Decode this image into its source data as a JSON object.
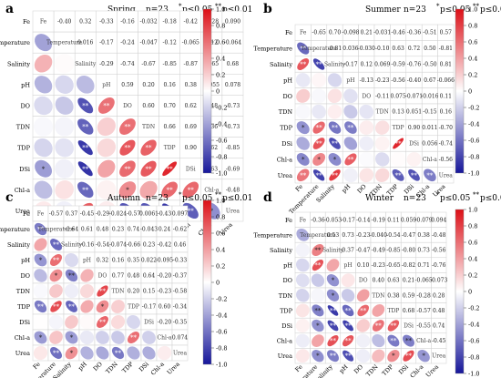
{
  "figure": {
    "panels": [
      {
        "letter": "a",
        "season": "Spring",
        "n_label": "n=23",
        "sig_star": "*",
        "sig_star_label": "p≤0.05",
        "sig_double": "**",
        "sig_double_label": "p≤0.01"
      },
      {
        "letter": "b",
        "season": "Summer",
        "n_label": "n=23",
        "sig_star": "*",
        "sig_star_label": "p≤0.05",
        "sig_double": "**",
        "sig_double_label": "p≤0.01"
      },
      {
        "letter": "c",
        "season": "Autumn",
        "n_label": "n=23",
        "sig_star": "*",
        "sig_star_label": "p≤0.05",
        "sig_double": "**",
        "sig_double_label": "p≤0.01"
      },
      {
        "letter": "d",
        "season": "Winter",
        "n_label": "n=23",
        "sig_star": "*",
        "sig_star_label": "p≤0.05",
        "sig_double": "**",
        "sig_double_label": "p≤0.01"
      }
    ],
    "colorbar_ticks": [
      "1.0",
      "0.8",
      "0.6",
      "0.4",
      "0.2",
      "0",
      "-0.2",
      "-0.4",
      "-0.6",
      "-0.8",
      "-1.0"
    ],
    "colors": {
      "positive": "#e8121a",
      "negative": "#1b1bb0",
      "neutral": "#ffffff",
      "grid": "#cfcfcf"
    }
  },
  "chart_data": [
    {
      "type": "heatmap",
      "title": "Spring",
      "variables": [
        "Fe",
        "Temperature",
        "Salinity",
        "pH",
        "DO",
        "TDN",
        "TDP",
        "DSi",
        "Chl-a",
        "Urea"
      ],
      "upper_labels": [
        [
          "",
          "-0.40",
          "0.32",
          "-0.33",
          "-0.16",
          "-0.032",
          "-0.18",
          "-0.42",
          "-0.28",
          "0.090"
        ],
        [
          "",
          "",
          "0.016",
          "-0.17",
          "-0.24",
          "-0.047",
          "-0.12",
          "-0.065",
          "0.12",
          "-0.064"
        ],
        [
          "",
          "",
          "",
          "-0.29",
          "-0.74",
          "-0.67",
          "-0.85",
          "-0.87",
          "-0.65",
          "0.68"
        ],
        [
          "",
          "",
          "",
          "",
          "0.59",
          "0.20",
          "0.16",
          "0.38",
          "0.055",
          "0.078"
        ],
        [
          "",
          "",
          "",
          "",
          "",
          "0.60",
          "0.70",
          "0.62",
          "0.48",
          "-0.73"
        ],
        [
          "",
          "",
          "",
          "",
          "",
          "",
          "0.66",
          "0.69",
          "0.36",
          "-0.73"
        ],
        [
          "",
          "",
          "",
          "",
          "",
          "",
          "",
          "0.90",
          "0.62",
          "-0.85"
        ],
        [
          "",
          "",
          "",
          "",
          "",
          "",
          "",
          "",
          "0.63",
          "-0.69"
        ],
        [
          "",
          "",
          "",
          "",
          "",
          "",
          "",
          "",
          "",
          "-0.48"
        ],
        [
          "",
          "",
          "",
          "",
          "",
          "",
          "",
          "",
          "",
          ""
        ]
      ],
      "lower_sig": [
        [
          "",
          "",
          "",
          "",
          "",
          "",
          "",
          "",
          "",
          ""
        ],
        [
          "",
          "",
          "",
          "",
          "",
          "",
          "",
          "",
          "",
          ""
        ],
        [
          "",
          "",
          "",
          "",
          "",
          "",
          "",
          "",
          "",
          ""
        ],
        [
          "",
          "",
          "",
          "",
          "",
          "",
          "",
          "",
          "",
          ""
        ],
        [
          "",
          "",
          "**",
          "**",
          "",
          "",
          "",
          "",
          "",
          ""
        ],
        [
          "",
          "",
          "**",
          "",
          "**",
          "",
          "",
          "",
          "",
          ""
        ],
        [
          "",
          "",
          "**",
          "",
          "**",
          "**",
          "",
          "",
          "",
          ""
        ],
        [
          "*",
          "",
          "**",
          "",
          "**",
          "**",
          "**",
          "",
          "",
          ""
        ],
        [
          "",
          "",
          "**",
          "",
          "*",
          "",
          "**",
          "**",
          "",
          ""
        ],
        [
          "",
          "",
          "**",
          "",
          "**",
          "**",
          "**",
          "**",
          "*",
          ""
        ]
      ],
      "colorbar_range": [
        -1,
        1
      ]
    },
    {
      "type": "heatmap",
      "title": "Summer",
      "variables": [
        "Fe",
        "Temperature",
        "Salinity",
        "pH",
        "DO",
        "TDN",
        "TDP",
        "DSi",
        "Chl-a",
        "Urea"
      ],
      "upper_labels": [
        [
          "",
          "-0.65",
          "0.70",
          "-0.098",
          "0.21",
          "-0.031",
          "-0.46",
          "-0.36",
          "-0.51",
          "0.57"
        ],
        [
          "",
          "",
          "-0.81",
          "0.036",
          "-0.030",
          "-0.10",
          "0.63",
          "0.72",
          "0.50",
          "-0.81"
        ],
        [
          "",
          "",
          "",
          "-0.17",
          "0.12",
          "0.069",
          "-0.59",
          "-0.76",
          "-0.50",
          "0.81"
        ],
        [
          "",
          "",
          "",
          "",
          "-0.13",
          "-0.23",
          "-0.56",
          "-0.40",
          "0.67",
          "-0.066"
        ],
        [
          "",
          "",
          "",
          "",
          "",
          "-0.11",
          "0.075",
          "-0.071",
          "-0.016",
          "0.11"
        ],
        [
          "",
          "",
          "",
          "",
          "",
          "",
          "0.13",
          "0.051",
          "-0.15",
          "0.16"
        ],
        [
          "",
          "",
          "",
          "",
          "",
          "",
          "",
          "0.90",
          "0.011",
          "-0.70"
        ],
        [
          "",
          "",
          "",
          "",
          "",
          "",
          "",
          "",
          "0.056",
          "-0.74"
        ],
        [
          "",
          "",
          "",
          "",
          "",
          "",
          "",
          "",
          "",
          "-0.56"
        ],
        [
          "",
          "",
          "",
          "",
          "",
          "",
          "",
          "",
          "",
          ""
        ]
      ],
      "lower_sig": [
        [
          "",
          "",
          "",
          "",
          "",
          "",
          "",
          "",
          "",
          ""
        ],
        [
          "**",
          "",
          "",
          "",
          "",
          "",
          "",
          "",
          "",
          ""
        ],
        [
          "**",
          "**",
          "",
          "",
          "",
          "",
          "",
          "",
          "",
          ""
        ],
        [
          "",
          "",
          "",
          "",
          "",
          "",
          "",
          "",
          "",
          ""
        ],
        [
          "",
          "",
          "",
          "",
          "",
          "",
          "",
          "",
          "",
          ""
        ],
        [
          "",
          "",
          "",
          "",
          "",
          "",
          "",
          "",
          "",
          ""
        ],
        [
          "*",
          "**",
          "**",
          "**",
          "",
          "",
          "",
          "",
          "",
          ""
        ],
        [
          "",
          "**",
          "**",
          "",
          "",
          "",
          "**",
          "",
          "",
          ""
        ],
        [
          "*",
          "*",
          "*",
          "**",
          "",
          "",
          "",
          "",
          "",
          ""
        ],
        [
          "**",
          "**",
          "**",
          "",
          "",
          "",
          "**",
          "**",
          "**",
          ""
        ]
      ],
      "colorbar_range": [
        -1,
        1
      ]
    },
    {
      "type": "heatmap",
      "title": "Autumn",
      "variables": [
        "Fe",
        "Temperature",
        "Salinity",
        "pH",
        "DO",
        "TDN",
        "TDP",
        "DSi",
        "Chl-a",
        "Urea"
      ],
      "upper_labels": [
        [
          "",
          "-0.57",
          "0.37",
          "-0.45",
          "-0.29",
          "-0.024",
          "-0.57",
          "0.0061",
          "-0.43",
          "0.097"
        ],
        [
          "",
          "",
          "-0.64",
          "0.61",
          "0.48",
          "0.23",
          "0.74",
          "-0.043",
          "0.24",
          "-0.62"
        ],
        [
          "",
          "",
          "",
          "-0.16",
          "-0.54",
          "-0.074",
          "-0.66",
          "0.23",
          "-0.42",
          "0.46"
        ],
        [
          "",
          "",
          "",
          "",
          "0.32",
          "0.16",
          "0.35",
          "0.022",
          "-0.095",
          "-0.33"
        ],
        [
          "",
          "",
          "",
          "",
          "",
          "0.77",
          "0.48",
          "0.64",
          "-0.20",
          "-0.37"
        ],
        [
          "",
          "",
          "",
          "",
          "",
          "",
          "0.20",
          "0.15",
          "-0.23",
          "-0.58"
        ],
        [
          "",
          "",
          "",
          "",
          "",
          "",
          "",
          "-0.17",
          "0.60",
          "-0.34"
        ],
        [
          "",
          "",
          "",
          "",
          "",
          "",
          "",
          "",
          "-0.20",
          "-0.35"
        ],
        [
          "",
          "",
          "",
          "",
          "",
          "",
          "",
          "",
          "",
          "0.074"
        ],
        [
          "",
          "",
          "",
          "",
          "",
          "",
          "",
          "",
          "",
          ""
        ]
      ],
      "lower_sig": [
        [
          "",
          "",
          "",
          "",
          "",
          "",
          "",
          "",
          "",
          ""
        ],
        [
          "**",
          "",
          "",
          "",
          "",
          "",
          "",
          "",
          "",
          ""
        ],
        [
          "",
          "**",
          "",
          "",
          "",
          "",
          "",
          "",
          "",
          ""
        ],
        [
          "*",
          "**",
          "",
          "",
          "",
          "",
          "",
          "",
          "",
          ""
        ],
        [
          "",
          "*",
          "**",
          "",
          "",
          "",
          "",
          "",
          "",
          ""
        ],
        [
          "",
          "",
          "",
          "",
          "**",
          "",
          "",
          "",
          "",
          ""
        ],
        [
          "**",
          "**",
          "**",
          "",
          "*",
          "",
          "",
          "",
          "",
          ""
        ],
        [
          "",
          "",
          "",
          "",
          "**",
          "",
          "",
          "",
          "",
          ""
        ],
        [
          "*",
          "",
          "*",
          "",
          "",
          "",
          "**",
          "",
          "",
          ""
        ],
        [
          "",
          "**",
          "*",
          "",
          "",
          "**",
          "",
          "",
          "",
          ""
        ]
      ],
      "colorbar_range": [
        -1,
        1
      ]
    },
    {
      "type": "heatmap",
      "title": "Winter",
      "variables": [
        "Fe",
        "Temperature",
        "Salinity",
        "pH",
        "DO",
        "TDN",
        "TDP",
        "DSi",
        "Chl-a",
        "Urea"
      ],
      "upper_labels": [
        [
          "",
          "-0.36",
          "-0.053",
          "-0.17",
          "-0.14",
          "-0.19",
          "0.11",
          "0.059",
          "-0.079",
          "0.094"
        ],
        [
          "",
          "",
          "0.53",
          "0.73",
          "-0.23",
          "-0.040",
          "-0.54",
          "-0.47",
          "0.38",
          "-0.48"
        ],
        [
          "",
          "",
          "",
          "0.37",
          "-0.47",
          "-0.49",
          "-0.85",
          "-0.80",
          "0.73",
          "-0.56"
        ],
        [
          "",
          "",
          "",
          "",
          "0.10",
          "-0.23",
          "-0.65",
          "-0.82",
          "0.71",
          "-0.76"
        ],
        [
          "",
          "",
          "",
          "",
          "",
          "0.40",
          "0.63",
          "0.21",
          "-0.065",
          "-0.073"
        ],
        [
          "",
          "",
          "",
          "",
          "",
          "",
          "0.38",
          "0.59",
          "-0.28",
          "0.28"
        ],
        [
          "",
          "",
          "",
          "",
          "",
          "",
          "",
          "0.68",
          "-0.57",
          "0.48"
        ],
        [
          "",
          "",
          "",
          "",
          "",
          "",
          "",
          "",
          "-0.55",
          "0.74"
        ],
        [
          "",
          "",
          "",
          "",
          "",
          "",
          "",
          "",
          "",
          "-0.45"
        ],
        [
          "",
          "",
          "",
          "",
          "",
          "",
          "",
          "",
          "",
          ""
        ]
      ],
      "lower_sig": [
        [
          "",
          "",
          "",
          "",
          "",
          "",
          "",
          "",
          "",
          ""
        ],
        [
          "",
          "",
          "",
          "",
          "",
          "",
          "",
          "",
          "",
          ""
        ],
        [
          "",
          "**",
          "",
          "",
          "",
          "",
          "",
          "",
          "",
          ""
        ],
        [
          "",
          "**",
          "",
          "",
          "",
          "",
          "",
          "",
          "",
          ""
        ],
        [
          "",
          "",
          "*",
          "",
          "",
          "",
          "",
          "",
          "",
          ""
        ],
        [
          "",
          "",
          "*",
          "",
          "",
          "",
          "",
          "",
          "",
          ""
        ],
        [
          "",
          "**",
          "**",
          "**",
          "**",
          "",
          "",
          "",
          "",
          ""
        ],
        [
          "",
          "*",
          "**",
          "**",
          "",
          "**",
          "**",
          "",
          "",
          ""
        ],
        [
          "",
          "",
          "**",
          "**",
          "",
          "",
          "**",
          "**",
          "",
          ""
        ],
        [
          "",
          "*",
          "**",
          "**",
          "",
          "",
          "*",
          "**",
          "*",
          ""
        ]
      ],
      "colorbar_range": [
        -1,
        1
      ]
    }
  ]
}
